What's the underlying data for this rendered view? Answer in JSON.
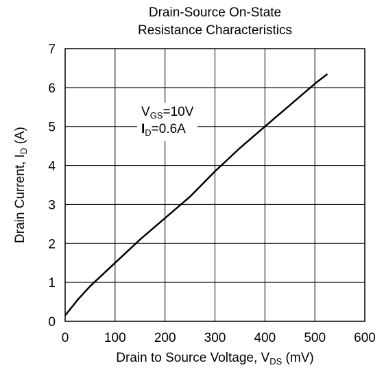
{
  "chart_data": {
    "type": "line",
    "title_line1": "Drain-Source On-State",
    "title_line2": "Resistance Characteristics",
    "xlabel": {
      "main": "Drain to Source Voltage, V",
      "sub": "DS",
      "unit": " (mV)"
    },
    "ylabel": {
      "main": "Drain Current, I",
      "sub": "D",
      "unit": " (A)"
    },
    "xlim": [
      0,
      600
    ],
    "ylim": [
      0,
      7
    ],
    "xticks": [
      0,
      100,
      200,
      300,
      400,
      500,
      600
    ],
    "yticks": [
      0,
      1,
      2,
      3,
      4,
      5,
      6,
      7
    ],
    "grid": true,
    "annotation": {
      "line1": {
        "main": "V",
        "sub": "GS",
        "rest": "=10V"
      },
      "line2": {
        "main": "I",
        "sub": "D",
        "rest": "=0.6A"
      }
    },
    "series": [
      {
        "x": [
          0,
          25,
          50,
          100,
          150,
          200,
          250,
          300,
          350,
          400,
          450,
          500,
          525
        ],
        "y": [
          0.15,
          0.55,
          0.9,
          1.5,
          2.1,
          2.65,
          3.2,
          3.85,
          4.45,
          5.0,
          5.55,
          6.1,
          6.35
        ]
      }
    ]
  }
}
